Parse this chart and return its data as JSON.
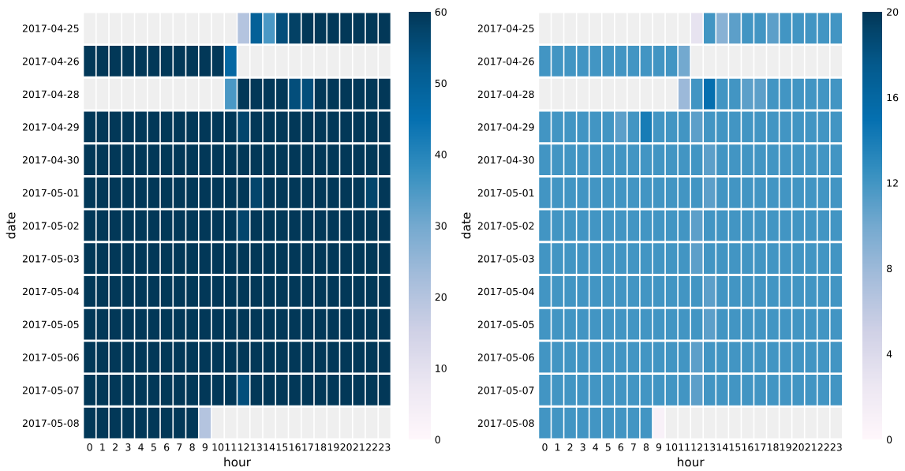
{
  "chart_data": [
    {
      "type": "heatmap",
      "xlabel": "hour",
      "ylabel": "date",
      "categories": [
        "0",
        "1",
        "2",
        "3",
        "4",
        "5",
        "6",
        "7",
        "8",
        "9",
        "10",
        "11",
        "12",
        "13",
        "14",
        "15",
        "16",
        "17",
        "18",
        "19",
        "20",
        "21",
        "22",
        "23"
      ],
      "y_categories": [
        "2017-04-25",
        "2017-04-26",
        "2017-04-28",
        "2017-04-29",
        "2017-04-30",
        "2017-05-01",
        "2017-05-02",
        "2017-05-03",
        "2017-05-04",
        "2017-05-05",
        "2017-05-06",
        "2017-05-07",
        "2017-05-08"
      ],
      "clim": [
        0,
        60
      ],
      "cticks": [
        0,
        10,
        20,
        30,
        40,
        50,
        60
      ],
      "cells": [
        [
          null,
          null,
          null,
          null,
          null,
          null,
          null,
          null,
          null,
          null,
          null,
          null,
          20,
          50,
          35,
          55,
          58,
          60,
          60,
          60,
          60,
          60,
          60,
          60
        ],
        [
          60,
          60,
          60,
          60,
          60,
          60,
          60,
          60,
          60,
          60,
          60,
          48,
          null,
          null,
          null,
          null,
          null,
          null,
          null,
          null,
          null,
          null,
          null,
          null
        ],
        [
          null,
          null,
          null,
          null,
          null,
          null,
          null,
          null,
          null,
          null,
          null,
          35,
          60,
          60,
          60,
          60,
          55,
          55,
          60,
          60,
          60,
          60,
          60,
          60
        ],
        [
          60,
          60,
          60,
          60,
          60,
          60,
          60,
          60,
          60,
          60,
          60,
          60,
          57,
          60,
          60,
          60,
          60,
          60,
          60,
          60,
          60,
          60,
          60,
          60
        ],
        [
          60,
          60,
          60,
          60,
          60,
          60,
          60,
          60,
          60,
          60,
          60,
          60,
          60,
          60,
          60,
          60,
          60,
          60,
          60,
          60,
          60,
          60,
          60,
          60
        ],
        [
          60,
          60,
          60,
          60,
          60,
          60,
          60,
          60,
          60,
          60,
          60,
          60,
          60,
          57,
          60,
          60,
          60,
          60,
          60,
          60,
          60,
          60,
          57,
          60
        ],
        [
          60,
          60,
          60,
          60,
          60,
          60,
          60,
          60,
          60,
          60,
          60,
          60,
          57,
          60,
          60,
          60,
          60,
          60,
          60,
          60,
          60,
          60,
          60,
          60
        ],
        [
          60,
          60,
          60,
          60,
          60,
          60,
          60,
          60,
          60,
          60,
          60,
          60,
          60,
          60,
          60,
          60,
          60,
          60,
          60,
          60,
          60,
          60,
          60,
          60
        ],
        [
          60,
          60,
          60,
          60,
          60,
          60,
          60,
          60,
          60,
          60,
          60,
          60,
          60,
          60,
          60,
          60,
          60,
          60,
          60,
          60,
          60,
          60,
          60,
          60
        ],
        [
          60,
          60,
          60,
          60,
          60,
          60,
          60,
          60,
          60,
          60,
          60,
          60,
          60,
          60,
          60,
          60,
          60,
          60,
          60,
          60,
          60,
          60,
          60,
          60
        ],
        [
          60,
          60,
          60,
          60,
          60,
          60,
          60,
          60,
          60,
          60,
          60,
          60,
          60,
          60,
          60,
          60,
          60,
          60,
          60,
          60,
          60,
          60,
          60,
          60
        ],
        [
          60,
          60,
          60,
          60,
          60,
          60,
          60,
          60,
          60,
          60,
          60,
          60,
          55,
          60,
          60,
          60,
          60,
          60,
          60,
          60,
          60,
          60,
          60,
          60
        ],
        [
          60,
          60,
          60,
          60,
          60,
          60,
          60,
          60,
          60,
          20,
          null,
          null,
          null,
          null,
          null,
          null,
          null,
          null,
          null,
          null,
          null,
          null,
          null,
          null
        ]
      ]
    },
    {
      "type": "heatmap",
      "xlabel": "hour",
      "ylabel": "date",
      "categories": [
        "0",
        "1",
        "2",
        "3",
        "4",
        "5",
        "6",
        "7",
        "8",
        "9",
        "10",
        "11",
        "12",
        "13",
        "14",
        "15",
        "16",
        "17",
        "18",
        "19",
        "20",
        "21",
        "22",
        "23"
      ],
      "y_categories": [
        "2017-04-25",
        "2017-04-26",
        "2017-04-28",
        "2017-04-29",
        "2017-04-30",
        "2017-05-01",
        "2017-05-02",
        "2017-05-03",
        "2017-05-04",
        "2017-05-05",
        "2017-05-06",
        "2017-05-07",
        "2017-05-08"
      ],
      "clim": [
        0,
        20
      ],
      "cticks": [
        0,
        4,
        8,
        12,
        16,
        20
      ],
      "cells": [
        [
          null,
          null,
          null,
          null,
          null,
          null,
          null,
          null,
          null,
          null,
          null,
          null,
          3,
          12,
          9,
          11,
          12,
          12,
          11,
          12,
          12,
          12,
          12,
          12
        ],
        [
          12,
          12,
          12,
          12,
          12,
          12,
          12,
          12,
          12,
          12,
          12,
          10,
          null,
          null,
          null,
          null,
          null,
          null,
          null,
          null,
          null,
          null,
          null,
          null
        ],
        [
          null,
          null,
          null,
          null,
          null,
          null,
          null,
          null,
          null,
          null,
          null,
          8,
          12,
          15,
          12,
          12,
          11,
          11,
          12,
          12,
          12,
          12,
          12,
          12
        ],
        [
          12,
          12,
          12,
          12,
          12,
          12,
          11,
          12,
          14,
          12,
          12,
          12,
          11,
          12,
          12,
          12,
          12,
          12,
          12,
          12,
          12,
          12,
          12,
          12
        ],
        [
          12,
          12,
          12,
          12,
          12,
          12,
          12,
          12,
          12,
          12,
          12,
          12,
          12,
          11,
          12,
          12,
          12,
          12,
          12,
          12,
          12,
          12,
          12,
          12
        ],
        [
          12,
          12,
          12,
          12,
          12,
          12,
          12,
          12,
          12,
          12,
          12,
          12,
          12,
          11,
          12,
          12,
          12,
          12,
          12,
          12,
          12,
          12,
          12,
          12
        ],
        [
          12,
          12,
          12,
          12,
          12,
          12,
          12,
          12,
          12,
          12,
          12,
          12,
          11,
          12,
          12,
          12,
          12,
          12,
          12,
          12,
          12,
          12,
          12,
          12
        ],
        [
          12,
          12,
          12,
          12,
          12,
          12,
          12,
          12,
          12,
          12,
          12,
          12,
          11,
          12,
          12,
          12,
          12,
          12,
          12,
          12,
          12,
          12,
          12,
          12
        ],
        [
          12,
          12,
          12,
          12,
          12,
          12,
          12,
          12,
          12,
          12,
          12,
          12,
          12,
          11,
          12,
          12,
          12,
          12,
          12,
          12,
          12,
          12,
          12,
          12
        ],
        [
          12,
          12,
          12,
          12,
          12,
          12,
          12,
          12,
          12,
          12,
          12,
          12,
          12,
          11,
          12,
          12,
          12,
          12,
          12,
          12,
          12,
          12,
          12,
          12
        ],
        [
          12,
          12,
          12,
          12,
          12,
          12,
          12,
          12,
          12,
          12,
          12,
          12,
          11,
          12,
          12,
          12,
          12,
          12,
          12,
          12,
          12,
          12,
          12,
          12
        ],
        [
          12,
          12,
          12,
          12,
          12,
          12,
          12,
          12,
          12,
          12,
          12,
          12,
          11,
          12,
          12,
          12,
          12,
          12,
          12,
          12,
          12,
          12,
          12,
          12
        ],
        [
          12,
          12,
          12,
          12,
          12,
          12,
          12,
          12,
          12,
          1,
          null,
          null,
          null,
          null,
          null,
          null,
          null,
          null,
          null,
          null,
          null,
          null,
          null,
          null
        ]
      ]
    }
  ]
}
